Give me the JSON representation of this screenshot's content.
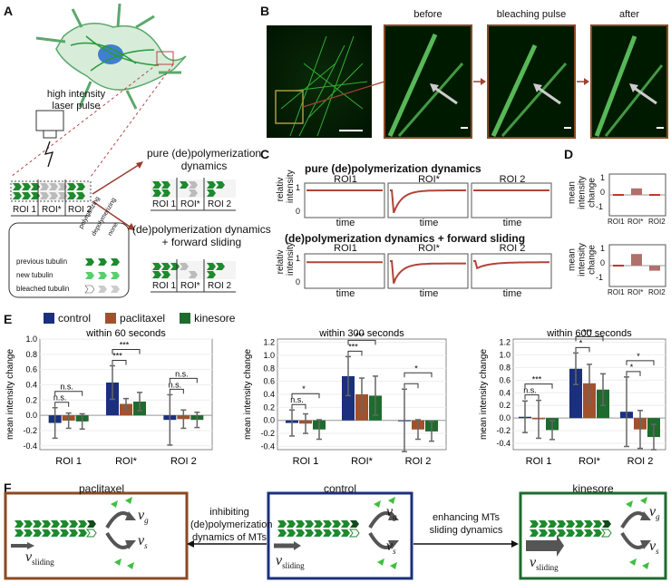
{
  "panels": {
    "a": "A",
    "b": "B",
    "c": "C",
    "d": "D",
    "e": "E",
    "f": "F"
  },
  "panelA": {
    "laser": "high intensity\nlaser pulse",
    "roi_labels": [
      "ROI 1",
      "ROI*",
      "ROI 2"
    ],
    "legend_cols": [
      "polymerizing",
      "depolymerizing",
      "none"
    ],
    "legend_rows": [
      "previous tubulin",
      "new tubulin",
      "bleached tubulin"
    ],
    "branch1": "pure (de)polymerization\ndynamics",
    "branch2": "(de)polymerization dynamics\n+ forward sliding"
  },
  "panelB": {
    "titles": [
      "before",
      "bleaching pulse",
      "after"
    ]
  },
  "panelC": {
    "title1": "pure (de)polymerization dynamics",
    "title2": "(de)polymerization dynamics + forward sliding",
    "roi_titles": [
      "ROI1",
      "ROI*",
      "ROI 2"
    ],
    "ylabel": "relativ\nintensity",
    "xlabel": "time",
    "y_ticks": [
      "1",
      "0"
    ]
  },
  "panelD": {
    "ylabel": "mean\nintensity\nchange",
    "categories": [
      "ROI1",
      "ROI*",
      "ROI2"
    ],
    "y_ticks": [
      "1",
      "0",
      "-1"
    ],
    "top_values": [
      0.0,
      0.45,
      0.0
    ],
    "bottom_values": [
      0.0,
      0.8,
      -0.35
    ]
  },
  "legend": [
    {
      "name": "control",
      "color": "#1b2f7e"
    },
    {
      "name": "paclitaxel",
      "color": "#a0522d"
    },
    {
      "name": "kinesore",
      "color": "#1e6b2e"
    }
  ],
  "chart_data": [
    {
      "type": "bar",
      "title": "within 60 seconds",
      "ylabel": "mean intensity change",
      "categories": [
        "ROI 1",
        "ROI*",
        "ROI 2"
      ],
      "ylim": [
        -0.45,
        1.0
      ],
      "y_ticks": [
        -0.4,
        -0.2,
        0.0,
        0.2,
        0.4,
        0.6,
        0.8,
        1.0
      ],
      "series": [
        {
          "name": "control",
          "values": [
            -0.1,
            0.43,
            -0.06
          ],
          "err": [
            0.2,
            0.22,
            0.33
          ]
        },
        {
          "name": "paclitaxel",
          "values": [
            -0.07,
            0.15,
            -0.05
          ],
          "err": [
            0.1,
            0.07,
            0.12
          ]
        },
        {
          "name": "kinesore",
          "values": [
            -0.08,
            0.18,
            -0.06
          ],
          "err": [
            0.1,
            0.12,
            0.1
          ]
        }
      ],
      "sig": [
        {
          "cat": 0,
          "from": 0,
          "to": 1,
          "label": "n.s."
        },
        {
          "cat": 0,
          "from": 0,
          "to": 2,
          "label": "n.s."
        },
        {
          "cat": 1,
          "from": 0,
          "to": 1,
          "label": "***"
        },
        {
          "cat": 1,
          "from": 0,
          "to": 2,
          "label": "***"
        },
        {
          "cat": 2,
          "from": 0,
          "to": 1,
          "label": "n.s."
        },
        {
          "cat": 2,
          "from": 0,
          "to": 2,
          "label": "n.s."
        }
      ]
    },
    {
      "type": "bar",
      "title": "within 300 seconds",
      "ylabel": "mean intensity change",
      "categories": [
        "ROI 1",
        "ROI*",
        "ROI 2"
      ],
      "ylim": [
        -0.45,
        1.25
      ],
      "y_ticks": [
        -0.4,
        -0.2,
        0.0,
        0.2,
        0.4,
        0.6,
        0.8,
        1.0,
        1.2
      ],
      "series": [
        {
          "name": "control",
          "values": [
            -0.04,
            0.68,
            0.0
          ],
          "err": [
            0.2,
            0.3,
            0.48
          ]
        },
        {
          "name": "paclitaxel",
          "values": [
            -0.05,
            0.4,
            -0.14
          ],
          "err": [
            0.15,
            0.25,
            0.15
          ]
        },
        {
          "name": "kinesore",
          "values": [
            -0.14,
            0.38,
            -0.17
          ],
          "err": [
            0.15,
            0.3,
            0.15
          ]
        }
      ],
      "sig": [
        {
          "cat": 0,
          "from": 0,
          "to": 1,
          "label": "n.s."
        },
        {
          "cat": 0,
          "from": 0,
          "to": 2,
          "label": "*"
        },
        {
          "cat": 1,
          "from": 0,
          "to": 1,
          "label": "***"
        },
        {
          "cat": 1,
          "from": 0,
          "to": 2,
          "label": "***"
        },
        {
          "cat": 2,
          "from": 0,
          "to": 1,
          "label": ""
        },
        {
          "cat": 2,
          "from": 0,
          "to": 2,
          "label": "*"
        }
      ]
    },
    {
      "type": "bar",
      "title": "within 600 seconds",
      "ylabel": "mean intensity change",
      "categories": [
        "ROI 1",
        "ROI*",
        "ROI 2"
      ],
      "ylim": [
        -0.5,
        1.25
      ],
      "y_ticks": [
        -0.4,
        -0.2,
        0.0,
        0.2,
        0.4,
        0.6,
        0.8,
        1.0,
        1.2
      ],
      "series": [
        {
          "name": "control",
          "values": [
            0.02,
            0.78,
            0.1
          ],
          "err": [
            0.25,
            0.25,
            0.55
          ]
        },
        {
          "name": "paclitaxel",
          "values": [
            -0.02,
            0.55,
            -0.18
          ],
          "err": [
            0.3,
            0.3,
            0.3
          ]
        },
        {
          "name": "kinesore",
          "values": [
            -0.19,
            0.45,
            -0.3
          ],
          "err": [
            0.15,
            0.25,
            0.2
          ]
        }
      ],
      "sig": [
        {
          "cat": 0,
          "from": 0,
          "to": 1,
          "label": "n.s."
        },
        {
          "cat": 0,
          "from": 0,
          "to": 2,
          "label": "***"
        },
        {
          "cat": 1,
          "from": 0,
          "to": 1,
          "label": "*"
        },
        {
          "cat": 1,
          "from": 0,
          "to": 2,
          "label": "***"
        },
        {
          "cat": 2,
          "from": 0,
          "to": 1,
          "label": "*"
        },
        {
          "cat": 2,
          "from": 0,
          "to": 2,
          "label": "*"
        }
      ]
    }
  ],
  "panelF": {
    "boxes": [
      {
        "title": "paclitaxel",
        "color": "#8b4a22"
      },
      {
        "title": "control",
        "color": "#1b2f7e"
      },
      {
        "title": "kinesore",
        "color": "#1e6b2e"
      }
    ],
    "arrow_left": "inhibiting\n(de)polymerization\ndynamics of MTs",
    "arrow_right": "enhancing MTs\nsliding dynamics",
    "vg": "v",
    "vg_sub": "g",
    "vs": "v",
    "vs_sub": "s",
    "vsliding": "v",
    "vsliding_sub": "sliding"
  }
}
